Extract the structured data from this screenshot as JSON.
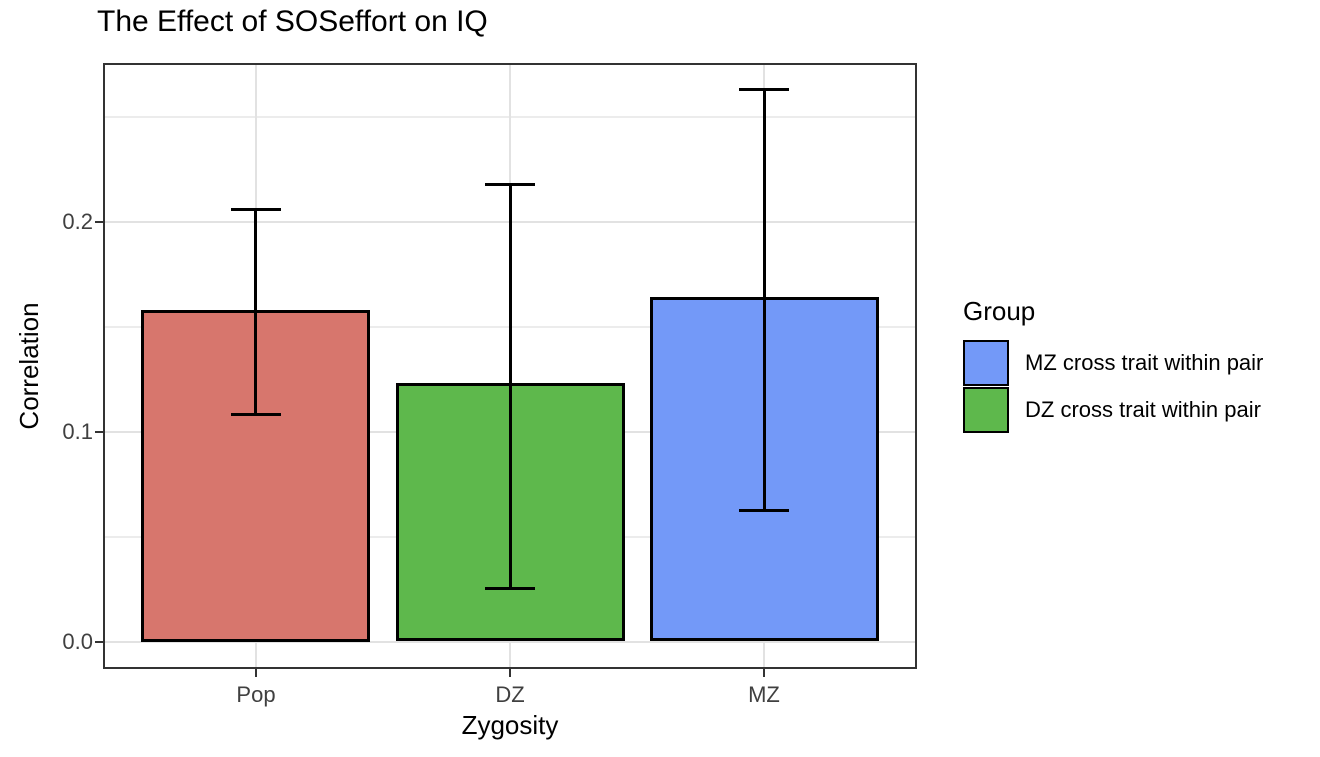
{
  "chart_data": {
    "type": "bar",
    "title": "The Effect of SOSeffort on IQ",
    "xlabel": "Zygosity",
    "ylabel": "Correlation",
    "categories": [
      "Pop",
      "DZ",
      "MZ"
    ],
    "values": [
      0.158,
      0.123,
      0.164
    ],
    "error_low": [
      0.108,
      0.025,
      0.062
    ],
    "error_high": [
      0.206,
      0.218,
      0.263
    ],
    "bar_colors": [
      "#D7766D",
      "#5EB84C",
      "#7399F8"
    ],
    "ylim": [
      -0.013,
      0.2755
    ],
    "y_major_ticks": [
      0.0,
      0.1,
      0.2
    ],
    "y_tick_labels": [
      "0.0",
      "0.1",
      "0.2"
    ],
    "y_minor_ticks": [
      0.05,
      0.15,
      0.25
    ],
    "grid": "on",
    "legend": {
      "position": "right",
      "title": "Group",
      "entries": [
        {
          "label": "MZ cross trait within pair",
          "swatch_color": "#7399F8"
        },
        {
          "label": "DZ cross trait within pair",
          "swatch_color": "#5EB84C"
        }
      ]
    },
    "style": {
      "bar_border_color": "#000000",
      "errorbar_color": "#000000",
      "panel_border_color": "#333333",
      "major_grid_color": "#E2E2E2",
      "minor_grid_color": "#ECECEC",
      "axis_tick_color": "#333333",
      "tick_label_color": "#404040",
      "text_color": "#000000",
      "panel_background": "#FFFFFF"
    }
  }
}
